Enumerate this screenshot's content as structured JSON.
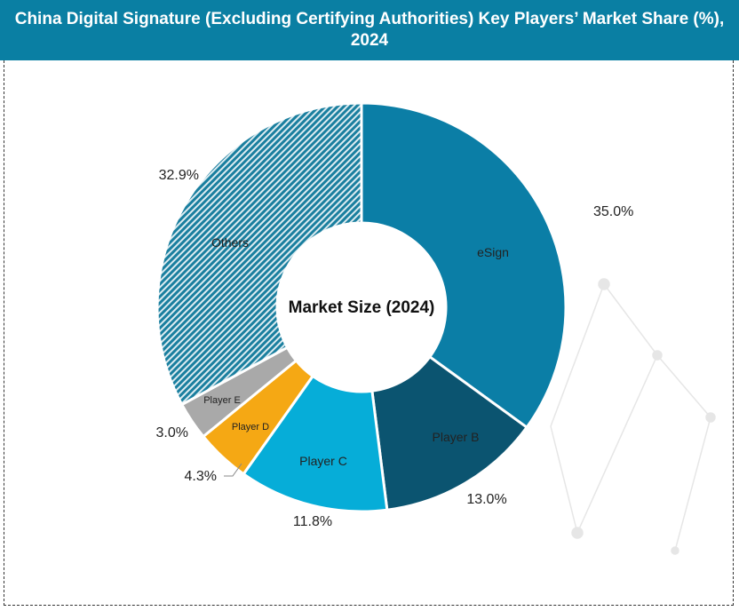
{
  "header": {
    "title": "China Digital Signature (Excluding Certifying Authorities) Key Players’ Market Share (%), 2024"
  },
  "chart_data": {
    "type": "pie",
    "donut": true,
    "center_label": "Market Size (2024)",
    "categories": [
      "eSign",
      "Player B",
      "Player C",
      "Player D",
      "Player E",
      "Others"
    ],
    "values": [
      35.0,
      13.0,
      11.8,
      4.3,
      3.0,
      32.9
    ],
    "value_labels": [
      "35.0%",
      "13.0%",
      "11.8%",
      "4.3%",
      "3.0%",
      "32.9%"
    ],
    "colors": [
      "#0b7ea6",
      "#0b5470",
      "#06add8",
      "#f5a814",
      "#a9a9a9",
      "#1a7f9f"
    ],
    "others_pattern": "striped"
  }
}
